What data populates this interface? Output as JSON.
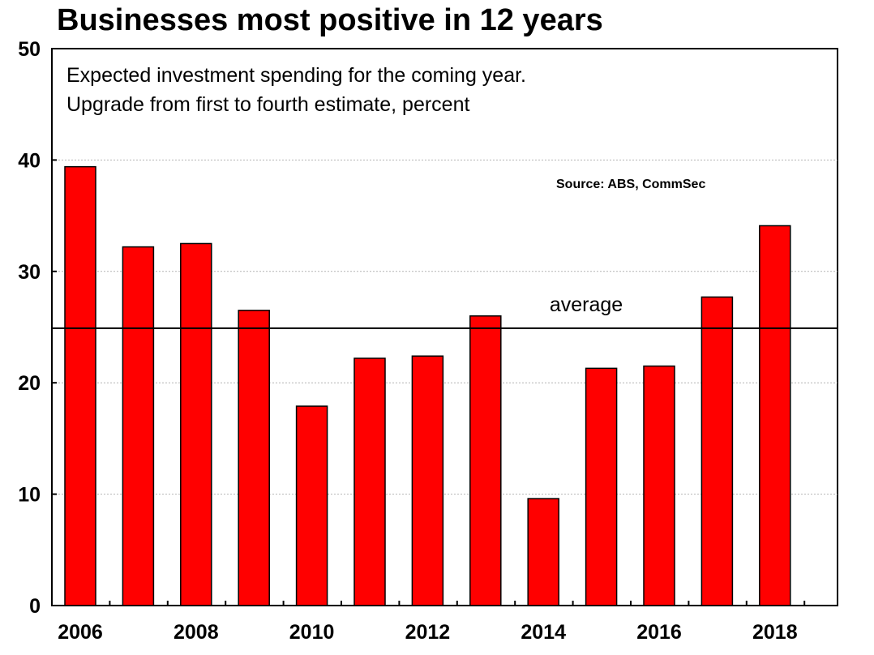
{
  "chart_data": {
    "type": "bar",
    "title": "Businesses most positive in 12 years",
    "subtitle_lines": [
      "Expected investment spending for the coming year.",
      "Upgrade from first to fourth estimate, percent"
    ],
    "source": "Source: ABS, CommSec",
    "categories": [
      "2006",
      "2007",
      "2008",
      "2009",
      "2010",
      "2011",
      "2012",
      "2013",
      "2014",
      "2015",
      "2016",
      "2017",
      "2018"
    ],
    "values": [
      39.4,
      32.2,
      32.5,
      26.5,
      17.9,
      22.2,
      22.4,
      26.0,
      9.6,
      21.3,
      21.5,
      27.7,
      34.1
    ],
    "x_tick_labels": [
      "2006",
      "2008",
      "2010",
      "2012",
      "2014",
      "2016",
      "2018"
    ],
    "y_ticks": [
      0,
      10,
      20,
      30,
      40,
      50
    ],
    "ylim": [
      0,
      50
    ],
    "xlabel": "",
    "ylabel": "",
    "grid": true,
    "average": {
      "label": "average",
      "value": 24.9
    },
    "bar_color": "#ff0000"
  }
}
